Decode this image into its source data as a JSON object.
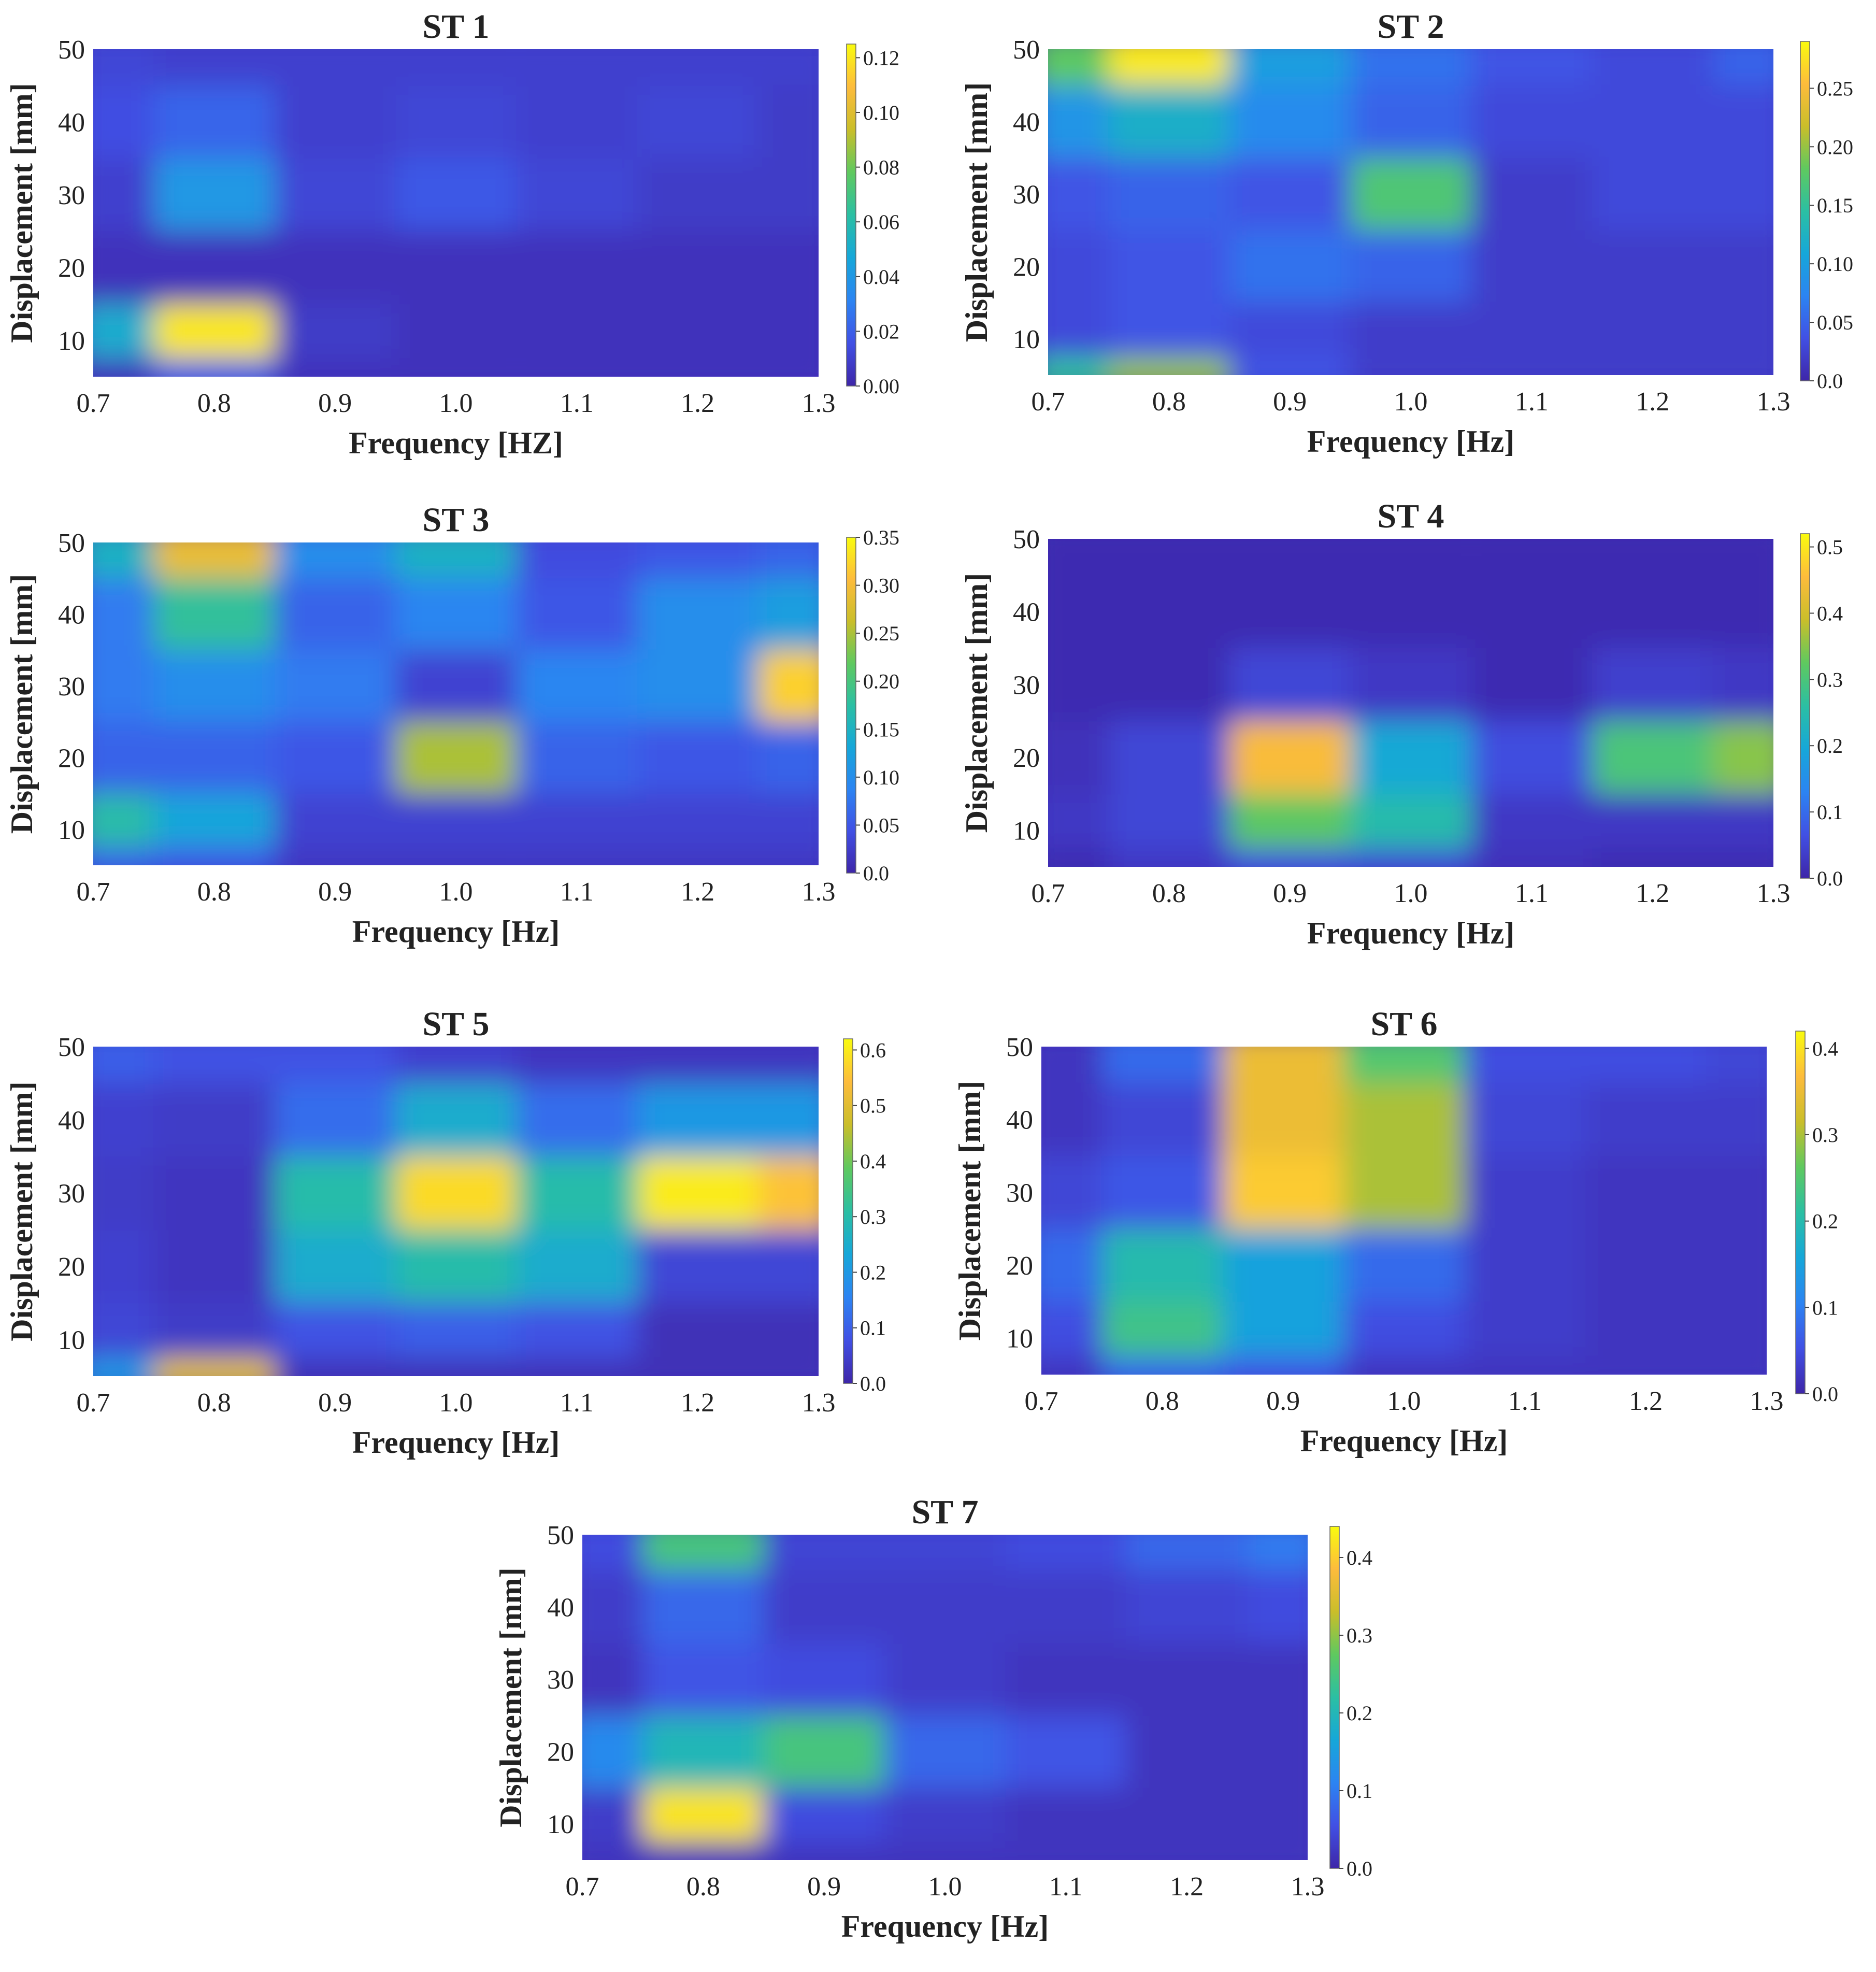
{
  "palette": [
    "#3e26a8",
    "#4150e4",
    "#2c84f2",
    "#16a7d9",
    "#2bbfa3",
    "#5fc95f",
    "#cabe2a",
    "#fdbc3c",
    "#f9fb0e"
  ],
  "panels": [
    {
      "title": "ST 1",
      "xlabel": "Frequency [HZ]",
      "ylabel": "Displacement [mm]",
      "xticks": [
        "0.7",
        "0.8",
        "0.9",
        "1.0",
        "1.1",
        "1.2",
        "1.3"
      ],
      "yticks": [
        "10",
        "20",
        "30",
        "40",
        "50"
      ],
      "cbar_ticks": [
        "0.00",
        "0.02",
        "0.04",
        "0.06",
        "0.08",
        "0.10",
        "0.12"
      ]
    },
    {
      "title": "ST 2",
      "xlabel": "Frequency [Hz]",
      "ylabel": "Displacement [mm]",
      "xticks": [
        "0.7",
        "0.8",
        "0.9",
        "1.0",
        "1.1",
        "1.2",
        "1.3"
      ],
      "yticks": [
        "10",
        "20",
        "30",
        "40",
        "50"
      ],
      "cbar_ticks": [
        "0.0",
        "0.05",
        "0.10",
        "0.15",
        "0.20",
        "0.25"
      ]
    },
    {
      "title": "ST 3",
      "xlabel": "Frequency [Hz]",
      "ylabel": "Displacement [mm]",
      "xticks": [
        "0.7",
        "0.8",
        "0.9",
        "1.0",
        "1.1",
        "1.2",
        "1.3"
      ],
      "yticks": [
        "10",
        "20",
        "30",
        "40",
        "50"
      ],
      "cbar_ticks": [
        "0.0",
        "0.05",
        "0.10",
        "0.15",
        "0.20",
        "0.25",
        "0.30",
        "0.35"
      ]
    },
    {
      "title": "ST 4",
      "xlabel": "Frequency [Hz]",
      "ylabel": "Displacement [mm]",
      "xticks": [
        "0.7",
        "0.8",
        "0.9",
        "1.0",
        "1.1",
        "1.2",
        "1.3"
      ],
      "yticks": [
        "10",
        "20",
        "30",
        "40",
        "50"
      ],
      "cbar_ticks": [
        "0.0",
        "0.1",
        "0.2",
        "0.3",
        "0.4",
        "0.5"
      ]
    },
    {
      "title": "ST 5",
      "xlabel": "Frequency [Hz]",
      "ylabel": "Displacement [mm]",
      "xticks": [
        "0.7",
        "0.8",
        "0.9",
        "1.0",
        "1.1",
        "1.2",
        "1.3"
      ],
      "yticks": [
        "10",
        "20",
        "30",
        "40",
        "50"
      ],
      "cbar_ticks": [
        "0.0",
        "0.1",
        "0.2",
        "0.3",
        "0.4",
        "0.5",
        "0.6"
      ]
    },
    {
      "title": "ST 6",
      "xlabel": "Frequency [Hz]",
      "ylabel": "Displacement [mm]",
      "xticks": [
        "0.7",
        "0.8",
        "0.9",
        "1.0",
        "1.1",
        "1.2",
        "1.3"
      ],
      "yticks": [
        "10",
        "20",
        "30",
        "40",
        "50"
      ],
      "cbar_ticks": [
        "0.0",
        "0.1",
        "0.2",
        "0.3",
        "0.4"
      ]
    },
    {
      "title": "ST 7",
      "xlabel": "Frequency [Hz]",
      "ylabel": "Displacement [mm]",
      "xticks": [
        "0.7",
        "0.8",
        "0.9",
        "1.0",
        "1.1",
        "1.2",
        "1.3"
      ],
      "yticks": [
        "10",
        "20",
        "30",
        "40",
        "50"
      ],
      "cbar_ticks": [
        "0.0",
        "0.1",
        "0.2",
        "0.3",
        "0.4"
      ]
    }
  ],
  "chart_data": [
    {
      "type": "heatmap",
      "title": "ST 1",
      "xlabel": "Frequency [HZ]",
      "ylabel": "Displacement [mm]",
      "x": [
        0.7,
        0.8,
        0.9,
        1.0,
        1.1,
        1.2,
        1.3
      ],
      "y": [
        5,
        10,
        20,
        30,
        40,
        50
      ],
      "xlim": [
        0.7,
        1.3
      ],
      "ylim": [
        5,
        50
      ],
      "clim": [
        0,
        0.125
      ],
      "colormap": "parula",
      "z": [
        [
          0.005,
          0.02,
          0.005,
          0.005,
          0.005,
          0.005,
          0.005
        ],
        [
          0.05,
          0.12,
          0.008,
          0.005,
          0.005,
          0.005,
          0.005
        ],
        [
          0.005,
          0.005,
          0.005,
          0.005,
          0.005,
          0.005,
          0.005
        ],
        [
          0.01,
          0.04,
          0.012,
          0.018,
          0.012,
          0.008,
          0.008
        ],
        [
          0.015,
          0.022,
          0.01,
          0.012,
          0.01,
          0.012,
          0.008
        ],
        [
          0.012,
          0.01,
          0.01,
          0.01,
          0.01,
          0.01,
          0.01
        ]
      ]
    },
    {
      "type": "heatmap",
      "title": "ST 2",
      "xlabel": "Frequency [Hz]",
      "ylabel": "Displacement [mm]",
      "x": [
        0.7,
        0.8,
        0.9,
        1.0,
        1.1,
        1.2,
        1.3
      ],
      "y": [
        5,
        10,
        20,
        30,
        40,
        50
      ],
      "xlim": [
        0.7,
        1.3
      ],
      "ylim": [
        5,
        50
      ],
      "clim": [
        0,
        0.29
      ],
      "colormap": "parula",
      "z": [
        [
          0.15,
          0.2,
          0.04,
          0.02,
          0.02,
          0.02,
          0.02
        ],
        [
          0.03,
          0.04,
          0.03,
          0.02,
          0.02,
          0.02,
          0.02
        ],
        [
          0.03,
          0.04,
          0.06,
          0.05,
          0.02,
          0.02,
          0.02
        ],
        [
          0.04,
          0.05,
          0.04,
          0.17,
          0.02,
          0.03,
          0.03
        ],
        [
          0.09,
          0.12,
          0.08,
          0.05,
          0.03,
          0.03,
          0.03
        ],
        [
          0.18,
          0.28,
          0.1,
          0.06,
          0.04,
          0.03,
          0.05
        ]
      ]
    },
    {
      "type": "heatmap",
      "title": "ST 3",
      "xlabel": "Frequency [Hz]",
      "ylabel": "Displacement [mm]",
      "x": [
        0.7,
        0.8,
        0.9,
        1.0,
        1.1,
        1.2,
        1.3
      ],
      "y": [
        5,
        10,
        20,
        30,
        40,
        50
      ],
      "xlim": [
        0.7,
        1.3
      ],
      "ylim": [
        5,
        50
      ],
      "clim": [
        0,
        0.35
      ],
      "colormap": "parula",
      "z": [
        [
          0.06,
          0.05,
          0.02,
          0.02,
          0.02,
          0.02,
          0.02
        ],
        [
          0.17,
          0.13,
          0.03,
          0.03,
          0.03,
          0.03,
          0.03
        ],
        [
          0.06,
          0.06,
          0.05,
          0.25,
          0.06,
          0.05,
          0.06
        ],
        [
          0.08,
          0.1,
          0.08,
          0.03,
          0.09,
          0.1,
          0.32
        ],
        [
          0.08,
          0.18,
          0.06,
          0.09,
          0.05,
          0.1,
          0.12
        ],
        [
          0.15,
          0.29,
          0.1,
          0.15,
          0.04,
          0.05,
          0.06
        ]
      ]
    },
    {
      "type": "heatmap",
      "title": "ST 4",
      "xlabel": "Frequency [Hz]",
      "ylabel": "Displacement [mm]",
      "x": [
        0.7,
        0.8,
        0.9,
        1.0,
        1.1,
        1.2,
        1.3
      ],
      "y": [
        5,
        10,
        20,
        30,
        40,
        50
      ],
      "xlim": [
        0.7,
        1.3
      ],
      "ylim": [
        5,
        50
      ],
      "clim": [
        0,
        0.52
      ],
      "colormap": "parula",
      "z": [
        [
          0.01,
          0.03,
          0.06,
          0.05,
          0.02,
          0.01,
          0.01
        ],
        [
          0.03,
          0.05,
          0.32,
          0.25,
          0.03,
          0.03,
          0.03
        ],
        [
          0.02,
          0.05,
          0.45,
          0.2,
          0.06,
          0.3,
          0.35
        ],
        [
          0.01,
          0.01,
          0.05,
          0.03,
          0.01,
          0.04,
          0.03
        ],
        [
          0.01,
          0.01,
          0.01,
          0.01,
          0.01,
          0.01,
          0.01
        ],
        [
          0.01,
          0.01,
          0.01,
          0.01,
          0.01,
          0.01,
          0.01
        ]
      ]
    },
    {
      "type": "heatmap",
      "title": "ST 5",
      "xlabel": "Frequency [Hz]",
      "ylabel": "Displacement [mm]",
      "x": [
        0.7,
        0.8,
        0.9,
        1.0,
        1.1,
        1.2,
        1.3
      ],
      "y": [
        5,
        10,
        20,
        30,
        40,
        50
      ],
      "xlim": [
        0.7,
        1.3
      ],
      "ylim": [
        5,
        50
      ],
      "clim": [
        0,
        0.62
      ],
      "colormap": "parula",
      "z": [
        [
          0.2,
          0.5,
          0.02,
          0.02,
          0.02,
          0.02,
          0.02
        ],
        [
          0.06,
          0.04,
          0.08,
          0.1,
          0.08,
          0.02,
          0.02
        ],
        [
          0.05,
          0.03,
          0.25,
          0.3,
          0.25,
          0.06,
          0.06
        ],
        [
          0.04,
          0.03,
          0.3,
          0.58,
          0.3,
          0.6,
          0.55
        ],
        [
          0.05,
          0.04,
          0.12,
          0.25,
          0.12,
          0.2,
          0.2
        ],
        [
          0.1,
          0.08,
          0.08,
          0.05,
          0.03,
          0.03,
          0.03
        ]
      ]
    },
    {
      "type": "heatmap",
      "title": "ST 6",
      "xlabel": "Frequency [Hz]",
      "ylabel": "Displacement [mm]",
      "x": [
        0.7,
        0.8,
        0.9,
        1.0,
        1.1,
        1.2,
        1.3
      ],
      "y": [
        5,
        10,
        20,
        30,
        40,
        50
      ],
      "xlim": [
        0.7,
        1.3
      ],
      "ylim": [
        5,
        50
      ],
      "clim": [
        0,
        0.42
      ],
      "colormap": "parula",
      "z": [
        [
          0.02,
          0.08,
          0.06,
          0.02,
          0.02,
          0.02,
          0.02
        ],
        [
          0.05,
          0.23,
          0.15,
          0.05,
          0.03,
          0.02,
          0.02
        ],
        [
          0.08,
          0.2,
          0.15,
          0.08,
          0.03,
          0.02,
          0.02
        ],
        [
          0.04,
          0.06,
          0.38,
          0.3,
          0.03,
          0.02,
          0.02
        ],
        [
          0.02,
          0.04,
          0.35,
          0.3,
          0.04,
          0.03,
          0.03
        ],
        [
          0.02,
          0.08,
          0.35,
          0.25,
          0.05,
          0.05,
          0.04
        ]
      ]
    },
    {
      "type": "heatmap",
      "title": "ST 7",
      "xlabel": "Frequency [Hz]",
      "ylabel": "Displacement [mm]",
      "x": [
        0.7,
        0.8,
        0.9,
        1.0,
        1.1,
        1.2,
        1.3
      ],
      "y": [
        5,
        10,
        20,
        30,
        40,
        50
      ],
      "xlim": [
        0.7,
        1.3
      ],
      "ylim": [
        5,
        50
      ],
      "clim": [
        0,
        0.44
      ],
      "colormap": "parula",
      "z": [
        [
          0.02,
          0.02,
          0.02,
          0.02,
          0.02,
          0.02,
          0.02
        ],
        [
          0.03,
          0.42,
          0.05,
          0.03,
          0.02,
          0.02,
          0.02
        ],
        [
          0.12,
          0.2,
          0.25,
          0.08,
          0.06,
          0.02,
          0.02
        ],
        [
          0.02,
          0.06,
          0.05,
          0.03,
          0.02,
          0.02,
          0.02
        ],
        [
          0.03,
          0.08,
          0.03,
          0.03,
          0.03,
          0.04,
          0.05
        ],
        [
          0.05,
          0.25,
          0.04,
          0.04,
          0.05,
          0.08,
          0.1
        ]
      ]
    }
  ]
}
